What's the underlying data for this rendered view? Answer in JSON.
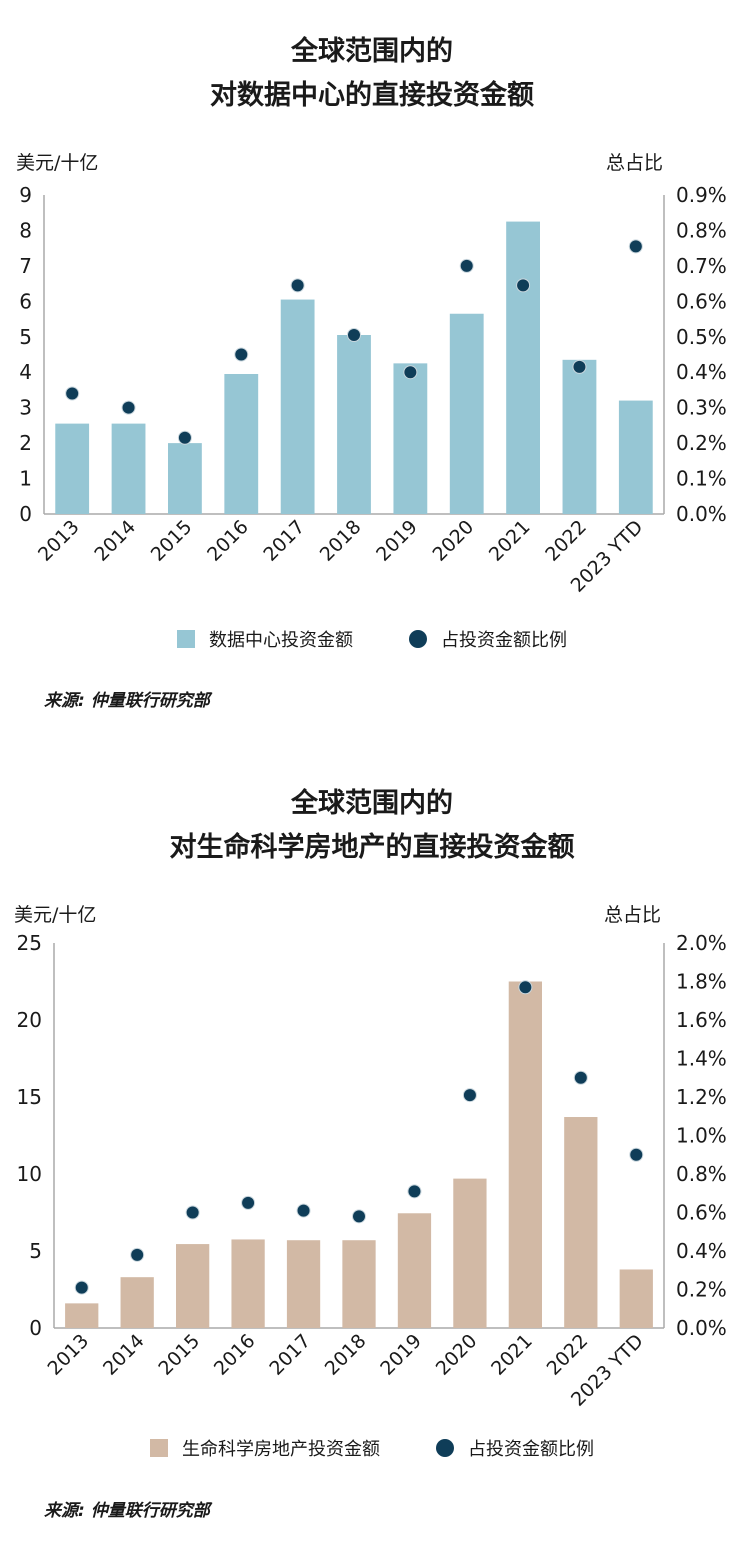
{
  "colors": {
    "bar_1": "#96c6d4",
    "bar_2": "#d2b9a5",
    "dot": "#0f3d58",
    "axis": "#aaaaaa"
  },
  "charts": [
    {
      "title_line1": "全球范围内的",
      "title_line2": "对数据中心的直接投资金额",
      "left_unit": "美元/十亿",
      "right_unit": "总占比",
      "legend_bar": "数据中心投资金额",
      "legend_dot": "占投资金额比例",
      "source": "来源: 仲量联行研究部"
    },
    {
      "title_line1": "全球范围内的",
      "title_line2": "对生命科学房地产的直接投资金额",
      "left_unit": "美元/十亿",
      "right_unit": "总占比",
      "legend_bar": "生命科学房地产投资金额",
      "legend_dot": "占投资金额比例",
      "source": "来源: 仲量联行研究部"
    }
  ],
  "chart_data": [
    {
      "type": "bar",
      "title": "全球范围内的 对数据中心的直接投资金额",
      "categories": [
        "2013",
        "2014",
        "2015",
        "2016",
        "2017",
        "2018",
        "2019",
        "2020",
        "2021",
        "2022",
        "2023 YTD"
      ],
      "series": [
        {
          "name": "数据中心投资金额",
          "type": "bar",
          "axis": "left",
          "values": [
            2.55,
            2.55,
            2.0,
            3.95,
            6.05,
            5.05,
            4.25,
            5.65,
            8.25,
            4.35,
            3.2
          ]
        },
        {
          "name": "占投资金额比例",
          "type": "scatter",
          "axis": "right",
          "values": [
            0.34,
            0.3,
            0.215,
            0.45,
            0.645,
            0.505,
            0.4,
            0.7,
            0.645,
            0.415,
            0.755
          ]
        }
      ],
      "ylabel": "美元/十亿",
      "y2label": "总占比",
      "ylim": [
        0,
        9
      ],
      "y2lim": [
        0,
        0.9
      ],
      "yticks": [
        "0",
        "1",
        "2",
        "3",
        "4",
        "5",
        "6",
        "7",
        "8",
        "9"
      ],
      "y2ticks": [
        "0.0%",
        "0.1%",
        "0.2%",
        "0.3%",
        "0.4%",
        "0.5%",
        "0.6%",
        "0.7%",
        "0.8%",
        "0.9%"
      ],
      "legend": "bottom",
      "grid": false
    },
    {
      "type": "bar",
      "title": "全球范围内的 对生命科学房地产的直接投资金额",
      "categories": [
        "2013",
        "2014",
        "2015",
        "2016",
        "2017",
        "2018",
        "2019",
        "2020",
        "2021",
        "2022",
        "2023 YTD"
      ],
      "series": [
        {
          "name": "生命科学房地产投资金额",
          "type": "bar",
          "axis": "left",
          "values": [
            1.6,
            3.3,
            5.45,
            5.75,
            5.7,
            5.7,
            7.45,
            9.7,
            22.5,
            13.7,
            3.8
          ]
        },
        {
          "name": "占投资金额比例",
          "type": "scatter",
          "axis": "right",
          "values": [
            0.21,
            0.38,
            0.6,
            0.65,
            0.61,
            0.58,
            0.71,
            1.21,
            1.77,
            1.3,
            0.9
          ]
        }
      ],
      "ylabel": "美元/十亿",
      "y2label": "总占比",
      "ylim": [
        0,
        25
      ],
      "y2lim": [
        0,
        2.0
      ],
      "yticks": [
        "0",
        "5",
        "10",
        "15",
        "20",
        "25"
      ],
      "y2ticks": [
        "0.0%",
        "0.2%",
        "0.4%",
        "0.6%",
        "0.8%",
        "1.0%",
        "1.2%",
        "1.4%",
        "1.6%",
        "1.8%",
        "2.0%"
      ],
      "legend": "bottom",
      "grid": false
    }
  ]
}
